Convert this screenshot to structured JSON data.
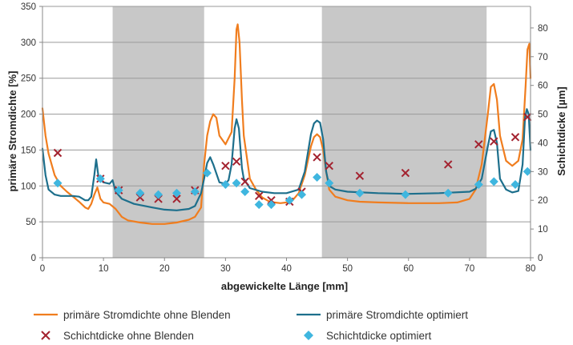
{
  "chart_data": {
    "type": "line",
    "xlabel": "abgewickelte Länge [mm]",
    "ylabel": "primäre Stromdichte [%]",
    "y2label": "Schichtdicke [µm]",
    "xlim": [
      0,
      80
    ],
    "ylim": [
      0,
      350
    ],
    "y2lim": [
      0,
      87.5
    ],
    "xticks": [
      0,
      10,
      20,
      30,
      40,
      50,
      60,
      70,
      80
    ],
    "yticks": [
      0,
      50,
      100,
      150,
      200,
      250,
      300,
      350
    ],
    "y2ticks": [
      0,
      10,
      20,
      30,
      40,
      50,
      60,
      70,
      80
    ],
    "grid": "horizontal",
    "legend_position": "bottom",
    "shaded_regions": [
      [
        11.5,
        26.5
      ],
      [
        45.8,
        72.8
      ]
    ],
    "colors": {
      "orange": "#f07d1e",
      "teal": "#1d6f8c",
      "cross": "#a3222f",
      "diamond": "#3fb6df",
      "shade": "#c8c8c8",
      "grid": "#9a9a9a"
    },
    "series": [
      {
        "name": "primäre Stromdichte ohne Blenden",
        "kind": "line",
        "axis": "left",
        "color": "#f07d1e",
        "points": [
          [
            0,
            208
          ],
          [
            0.5,
            170
          ],
          [
            1,
            145
          ],
          [
            2,
            115
          ],
          [
            3,
            100
          ],
          [
            4,
            92
          ],
          [
            5,
            85
          ],
          [
            6,
            78
          ],
          [
            7,
            70
          ],
          [
            7.5,
            68
          ],
          [
            8,
            75
          ],
          [
            8.5,
            88
          ],
          [
            9,
            98
          ],
          [
            9.5,
            82
          ],
          [
            10,
            77
          ],
          [
            11,
            75
          ],
          [
            12,
            68
          ],
          [
            13,
            57
          ],
          [
            14,
            52
          ],
          [
            16,
            49
          ],
          [
            18,
            47
          ],
          [
            20,
            47
          ],
          [
            22,
            49
          ],
          [
            24,
            53
          ],
          [
            25,
            57
          ],
          [
            26,
            70
          ],
          [
            26.5,
            130
          ],
          [
            27,
            170
          ],
          [
            27.5,
            190
          ],
          [
            28,
            200
          ],
          [
            28.5,
            195
          ],
          [
            29,
            170
          ],
          [
            30,
            158
          ],
          [
            31,
            175
          ],
          [
            31.5,
            250
          ],
          [
            31.8,
            318
          ],
          [
            32,
            325
          ],
          [
            32.3,
            300
          ],
          [
            32.7,
            220
          ],
          [
            33,
            170
          ],
          [
            34,
            110
          ],
          [
            35,
            95
          ],
          [
            36,
            84
          ],
          [
            37,
            79
          ],
          [
            38,
            77
          ],
          [
            39,
            76
          ],
          [
            40,
            77
          ],
          [
            41,
            80
          ],
          [
            42,
            90
          ],
          [
            43,
            115
          ],
          [
            44,
            155
          ],
          [
            44.5,
            168
          ],
          [
            45,
            172
          ],
          [
            45.5,
            168
          ],
          [
            46,
            150
          ],
          [
            46.5,
            120
          ],
          [
            47,
            95
          ],
          [
            48,
            85
          ],
          [
            50,
            80
          ],
          [
            52,
            78
          ],
          [
            55,
            77
          ],
          [
            60,
            76
          ],
          [
            65,
            76
          ],
          [
            68,
            77
          ],
          [
            70,
            82
          ],
          [
            71,
            95
          ],
          [
            72,
            130
          ],
          [
            73,
            200
          ],
          [
            73.5,
            238
          ],
          [
            74,
            242
          ],
          [
            74.5,
            220
          ],
          [
            75,
            170
          ],
          [
            76,
            135
          ],
          [
            77,
            128
          ],
          [
            78,
            135
          ],
          [
            78.7,
            165
          ],
          [
            79.2,
            240
          ],
          [
            79.5,
            290
          ],
          [
            79.8,
            298
          ],
          [
            80,
            250
          ]
        ]
      },
      {
        "name": "primäre Stromdichte optimiert",
        "kind": "line",
        "axis": "left",
        "color": "#1d6f8c",
        "points": [
          [
            0,
            152
          ],
          [
            0.5,
            115
          ],
          [
            1,
            95
          ],
          [
            2,
            88
          ],
          [
            3,
            86
          ],
          [
            4,
            86
          ],
          [
            5,
            86
          ],
          [
            6,
            85
          ],
          [
            7,
            80
          ],
          [
            7.5,
            80
          ],
          [
            8,
            85
          ],
          [
            8.5,
            115
          ],
          [
            8.8,
            137
          ],
          [
            9.2,
            112
          ],
          [
            10,
            105
          ],
          [
            11,
            103
          ],
          [
            11.5,
            108
          ],
          [
            12,
            92
          ],
          [
            13,
            82
          ],
          [
            15,
            75
          ],
          [
            18,
            70
          ],
          [
            20,
            67
          ],
          [
            22,
            66
          ],
          [
            24,
            68
          ],
          [
            25,
            72
          ],
          [
            26,
            90
          ],
          [
            26.5,
            110
          ],
          [
            27,
            132
          ],
          [
            27.5,
            140
          ],
          [
            28,
            130
          ],
          [
            29,
            105
          ],
          [
            30,
            103
          ],
          [
            30.5,
            108
          ],
          [
            31,
            130
          ],
          [
            31.5,
            180
          ],
          [
            31.8,
            193
          ],
          [
            32.2,
            180
          ],
          [
            32.7,
            125
          ],
          [
            33,
            110
          ],
          [
            34,
            97
          ],
          [
            36,
            92
          ],
          [
            38,
            90
          ],
          [
            40,
            90
          ],
          [
            42,
            95
          ],
          [
            43,
            120
          ],
          [
            44,
            172
          ],
          [
            44.5,
            187
          ],
          [
            45,
            191
          ],
          [
            45.5,
            188
          ],
          [
            46,
            165
          ],
          [
            46.5,
            120
          ],
          [
            47,
            100
          ],
          [
            48,
            95
          ],
          [
            50,
            92
          ],
          [
            55,
            90
          ],
          [
            60,
            89
          ],
          [
            65,
            90
          ],
          [
            70,
            92
          ],
          [
            71,
            96
          ],
          [
            72,
            110
          ],
          [
            73,
            155
          ],
          [
            73.5,
            176
          ],
          [
            74,
            178
          ],
          [
            74.5,
            160
          ],
          [
            75,
            110
          ],
          [
            76,
            95
          ],
          [
            77,
            91
          ],
          [
            78,
            93
          ],
          [
            78.7,
            130
          ],
          [
            79.1,
            195
          ],
          [
            79.4,
            207
          ],
          [
            79.7,
            200
          ],
          [
            80,
            150
          ]
        ]
      },
      {
        "name": "Schichtdicke ohne Blenden",
        "kind": "scatter",
        "marker": "x",
        "axis": "right",
        "color": "#a3222f",
        "points": [
          [
            2.5,
            36.5
          ],
          [
            9.5,
            27.5
          ],
          [
            12.5,
            23.5
          ],
          [
            16,
            21
          ],
          [
            19,
            20.5
          ],
          [
            22,
            20.5
          ],
          [
            25,
            23.5
          ],
          [
            30,
            32
          ],
          [
            31.8,
            33.5
          ],
          [
            33.2,
            26.5
          ],
          [
            35.5,
            21.5
          ],
          [
            37.5,
            20
          ],
          [
            40.5,
            19.5
          ],
          [
            42.5,
            23
          ],
          [
            45,
            35
          ],
          [
            47,
            32
          ],
          [
            52,
            28.5
          ],
          [
            59.5,
            29.5
          ],
          [
            66.5,
            32.5
          ],
          [
            71.5,
            39.5
          ],
          [
            74,
            40.5
          ],
          [
            77.5,
            42
          ],
          [
            79.5,
            49
          ]
        ]
      },
      {
        "name": "Schichtdicke optimiert",
        "kind": "scatter",
        "marker": "diamond",
        "axis": "right",
        "color": "#3fb6df",
        "points": [
          [
            2.5,
            26
          ],
          [
            9.5,
            27.5
          ],
          [
            12.5,
            23.5
          ],
          [
            16,
            22.5
          ],
          [
            19,
            22
          ],
          [
            22,
            22.5
          ],
          [
            25,
            23
          ],
          [
            27,
            29.5
          ],
          [
            30,
            25.5
          ],
          [
            31.8,
            26
          ],
          [
            33.2,
            23
          ],
          [
            35.5,
            18.5
          ],
          [
            37.5,
            18.5
          ],
          [
            40.5,
            20
          ],
          [
            42.5,
            22
          ],
          [
            45,
            28
          ],
          [
            47,
            26
          ],
          [
            52,
            22.5
          ],
          [
            59.5,
            22
          ],
          [
            66.5,
            22.5
          ],
          [
            71.5,
            25.5
          ],
          [
            74,
            26.5
          ],
          [
            77.5,
            25.5
          ],
          [
            79.5,
            30
          ]
        ]
      }
    ]
  }
}
